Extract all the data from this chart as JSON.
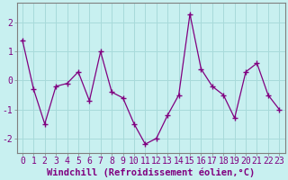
{
  "x": [
    0,
    1,
    2,
    3,
    4,
    5,
    6,
    7,
    8,
    9,
    10,
    11,
    12,
    13,
    14,
    15,
    16,
    17,
    18,
    19,
    20,
    21,
    22,
    23
  ],
  "y": [
    1.4,
    -0.3,
    -1.5,
    -0.2,
    -0.1,
    0.3,
    -0.7,
    1.0,
    -0.4,
    -0.6,
    -1.5,
    -2.2,
    -2.0,
    -1.2,
    -0.5,
    2.3,
    0.4,
    -0.2,
    -0.5,
    -1.3,
    0.3,
    0.6,
    -0.5,
    -1.0
  ],
  "line_color": "#800080",
  "marker": "+",
  "marker_size": 5,
  "bg_color": "#c8f0f0",
  "grid_color": "#a8dada",
  "xlabel": "Windchill (Refroidissement éolien,°C)",
  "ylabel": "",
  "ylim": [
    -2.5,
    2.7
  ],
  "xlim": [
    -0.5,
    23.5
  ],
  "yticks": [
    -2,
    -1,
    0,
    1,
    2
  ],
  "xticks": [
    0,
    1,
    2,
    3,
    4,
    5,
    6,
    7,
    8,
    9,
    10,
    11,
    12,
    13,
    14,
    15,
    16,
    17,
    18,
    19,
    20,
    21,
    22,
    23
  ],
  "text_color": "#800080",
  "axis_color": "#808080",
  "label_fontsize": 7.5,
  "tick_fontsize": 7
}
